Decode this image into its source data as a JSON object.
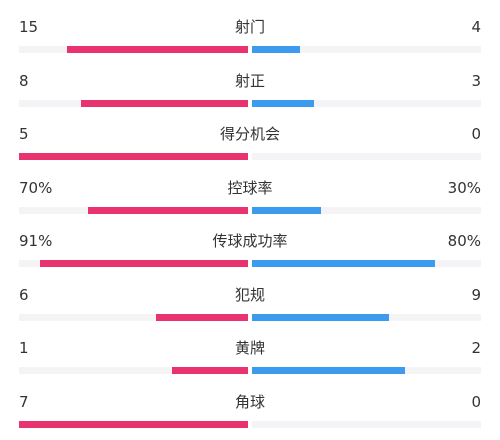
{
  "colors": {
    "home": "#e8336e",
    "away": "#3d9bef",
    "track": "#f4f4f6",
    "text": "#333333"
  },
  "stats": [
    {
      "label": "射门",
      "left": "15",
      "right": "4",
      "left_fill": 0.79,
      "right_fill": 0.21
    },
    {
      "label": "射正",
      "left": "8",
      "right": "3",
      "left_fill": 0.73,
      "right_fill": 0.27
    },
    {
      "label": "得分机会",
      "left": "5",
      "right": "0",
      "left_fill": 1.0,
      "right_fill": 0.0
    },
    {
      "label": "控球率",
      "left": "70%",
      "right": "30%",
      "left_fill": 0.7,
      "right_fill": 0.3
    },
    {
      "label": "传球成功率",
      "left": "91%",
      "right": "80%",
      "left_fill": 0.91,
      "right_fill": 0.8
    },
    {
      "label": "犯规",
      "left": "6",
      "right": "9",
      "left_fill": 0.4,
      "right_fill": 0.6
    },
    {
      "label": "黄牌",
      "left": "1",
      "right": "2",
      "left_fill": 0.33,
      "right_fill": 0.67
    },
    {
      "label": "角球",
      "left": "7",
      "right": "0",
      "left_fill": 1.0,
      "right_fill": 0.0
    }
  ]
}
